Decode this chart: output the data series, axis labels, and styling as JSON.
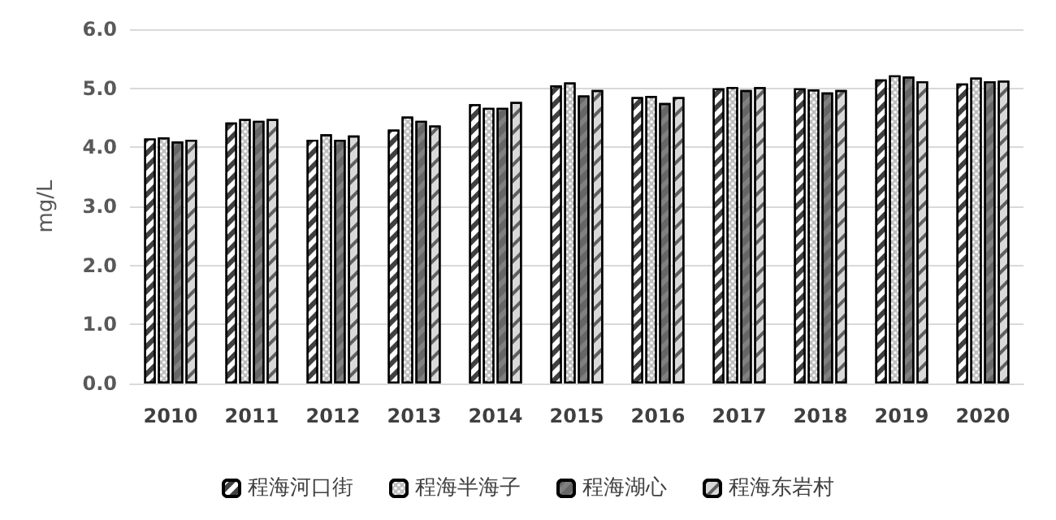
{
  "chart_data": {
    "type": "bar",
    "ylabel": "mg/L",
    "categories": [
      "2010",
      "2011",
      "2012",
      "2013",
      "2014",
      "2015",
      "2016",
      "2017",
      "2018",
      "2019",
      "2020"
    ],
    "series": [
      {
        "name": "程海河口街",
        "color": "#404040",
        "values": [
          4.15,
          4.42,
          4.13,
          4.3,
          4.73,
          5.05,
          4.85,
          5.0,
          5.0,
          5.15,
          5.08
        ]
      },
      {
        "name": "程海半海子",
        "color": "#bfbfbf",
        "values": [
          4.17,
          4.48,
          4.22,
          4.52,
          4.67,
          5.1,
          4.87,
          5.02,
          4.98,
          5.22,
          5.18
        ]
      },
      {
        "name": "程海湖心",
        "color": "#808080",
        "values": [
          4.1,
          4.45,
          4.13,
          4.45,
          4.67,
          4.88,
          4.75,
          4.97,
          4.93,
          5.2,
          5.12
        ]
      },
      {
        "name": "程海东岩村",
        "color": "#d9d9d9",
        "values": [
          4.13,
          4.48,
          4.2,
          4.37,
          4.77,
          4.97,
          4.85,
          5.02,
          4.97,
          5.12,
          5.13
        ]
      }
    ],
    "ylim": [
      0,
      6
    ],
    "yticks": [
      {
        "value": 0,
        "label": "0.0"
      },
      {
        "value": 1,
        "label": "1.0"
      },
      {
        "value": 2,
        "label": "2.0"
      },
      {
        "value": 3,
        "label": "3.0"
      },
      {
        "value": 4,
        "label": "4.0"
      },
      {
        "value": 5,
        "label": "5.0"
      },
      {
        "value": 6,
        "label": "6.0"
      }
    ],
    "grid": "y",
    "legend": "bottom"
  }
}
